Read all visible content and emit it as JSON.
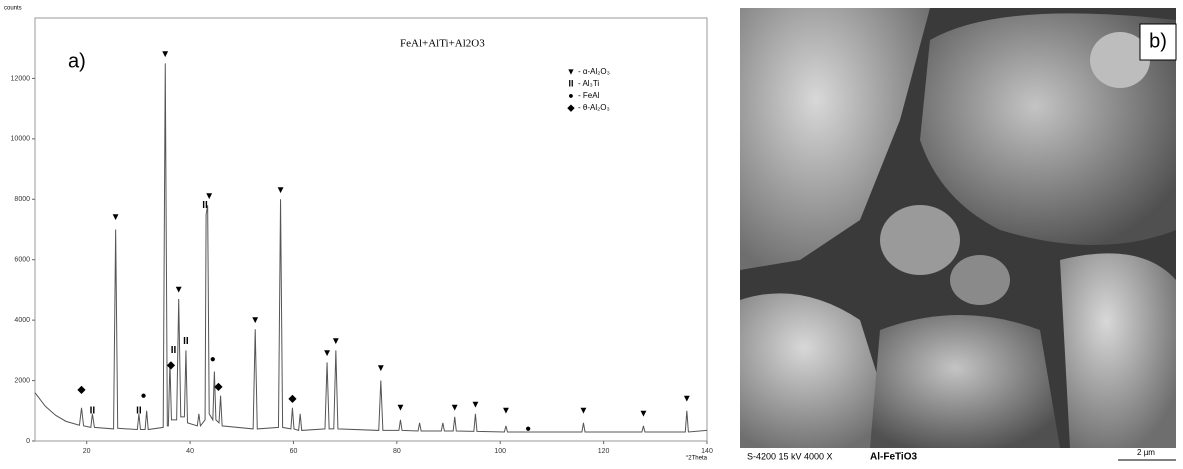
{
  "chart_data": {
    "type": "line",
    "title": "FeAl+AlTi+Al2O3",
    "panel_label": "a)",
    "y_label": "counts",
    "x_label": "°2Theta",
    "color": "#555555",
    "xlim": [
      10,
      140
    ],
    "ylim": [
      0,
      14000
    ],
    "xticks": [
      20,
      40,
      60,
      80,
      100,
      120,
      140
    ],
    "yticks": [
      0,
      2000,
      4000,
      6000,
      8000,
      10000,
      12000
    ],
    "x": [
      10,
      12,
      14,
      16,
      18.6,
      19,
      19.4,
      20.8,
      21.1,
      21.5,
      25.2,
      25.6,
      26,
      29.8,
      30.1,
      30.4,
      31.3,
      31.6,
      31.9,
      34.8,
      35.2,
      35.6,
      35.8,
      36.1,
      36.4,
      37.4,
      37.8,
      38.2,
      38.9,
      39.2,
      39.5,
      41.4,
      41.7,
      42,
      42.9,
      43.1,
      43.4,
      43.7,
      44.4,
      44.7,
      45,
      45.6,
      45.9,
      46.2,
      52.2,
      52.6,
      53,
      57.1,
      57.5,
      57.9,
      59.5,
      59.8,
      60.1,
      61,
      61.3,
      61.6,
      66.1,
      66.5,
      66.9,
      67.8,
      68.2,
      68.6,
      76.5,
      76.9,
      77.3,
      80.4,
      80.7,
      81,
      84.1,
      84.4,
      84.7,
      88.6,
      88.9,
      89.2,
      90.9,
      91.2,
      91.5,
      94.9,
      95.2,
      95.5,
      100.8,
      101.1,
      101.4,
      115.8,
      116.1,
      116.4,
      127.4,
      127.7,
      128,
      135.8,
      136.1,
      136.4,
      140
    ],
    "values": [
      1600,
      1150,
      850,
      650,
      520,
      1100,
      500,
      450,
      900,
      450,
      400,
      7000,
      420,
      380,
      900,
      380,
      380,
      1000,
      380,
      450,
      12500,
      500,
      500,
      2600,
      700,
      700,
      4700,
      800,
      800,
      3000,
      600,
      500,
      900,
      500,
      700,
      7500,
      7800,
      900,
      700,
      2300,
      700,
      600,
      1500,
      500,
      400,
      3700,
      400,
      450,
      8000,
      450,
      400,
      1100,
      400,
      350,
      900,
      350,
      400,
      2600,
      400,
      400,
      3000,
      400,
      350,
      2000,
      350,
      350,
      700,
      350,
      330,
      600,
      330,
      330,
      600,
      330,
      330,
      800,
      330,
      320,
      900,
      320,
      300,
      500,
      300,
      300,
      600,
      300,
      300,
      500,
      300,
      300,
      1000,
      300,
      350
    ],
    "peak_markers": [
      {
        "x": 19,
        "y": 1700,
        "label": "◆"
      },
      {
        "x": 21.1,
        "y": 1000,
        "label": "II"
      },
      {
        "x": 25.6,
        "y": 7400,
        "label": "▼"
      },
      {
        "x": 30.1,
        "y": 1000,
        "label": "II"
      },
      {
        "x": 31,
        "y": 1500,
        "label": "●"
      },
      {
        "x": 35.2,
        "y": 12800,
        "label": "▼"
      },
      {
        "x": 36.3,
        "y": 2500,
        "label": "◆"
      },
      {
        "x": 36.8,
        "y": 3000,
        "label": "II"
      },
      {
        "x": 37.8,
        "y": 5000,
        "label": "▼"
      },
      {
        "x": 39.2,
        "y": 3300,
        "label": "II"
      },
      {
        "x": 42.9,
        "y": 7800,
        "label": "II"
      },
      {
        "x": 43.7,
        "y": 8100,
        "label": "▼"
      },
      {
        "x": 44.4,
        "y": 2700,
        "label": "●"
      },
      {
        "x": 45.5,
        "y": 1800,
        "label": "◆"
      },
      {
        "x": 52.6,
        "y": 4000,
        "label": "▼"
      },
      {
        "x": 57.5,
        "y": 8300,
        "label": "▼"
      },
      {
        "x": 59.8,
        "y": 1400,
        "label": "◆"
      },
      {
        "x": 66.5,
        "y": 2900,
        "label": "▼"
      },
      {
        "x": 68.2,
        "y": 3300,
        "label": "▼"
      },
      {
        "x": 76.9,
        "y": 2400,
        "label": "▼"
      },
      {
        "x": 80.7,
        "y": 1100,
        "label": "▼"
      },
      {
        "x": 91.2,
        "y": 1100,
        "label": "▼"
      },
      {
        "x": 95.2,
        "y": 1200,
        "label": "▼"
      },
      {
        "x": 101.1,
        "y": 1000,
        "label": "▼"
      },
      {
        "x": 105.4,
        "y": 400,
        "label": "●"
      },
      {
        "x": 116.1,
        "y": 1000,
        "label": "▼"
      },
      {
        "x": 127.7,
        "y": 900,
        "label": "▼"
      },
      {
        "x": 136.1,
        "y": 1400,
        "label": "▼"
      }
    ],
    "legend": [
      {
        "symbol": "▼",
        "label": "- α-Al₂O₃"
      },
      {
        "symbol": "II",
        "label": "- Al₃Ti"
      },
      {
        "symbol": "●",
        "label": "- FeAl"
      },
      {
        "symbol": "◆",
        "label": "- θ-Al₂O₃"
      }
    ]
  },
  "sem_panel": {
    "panel_label": "b)",
    "instrument": "S-4200 15 kV 4000 X",
    "sample": "Al-FeTiO3",
    "scale": "2 µm"
  }
}
